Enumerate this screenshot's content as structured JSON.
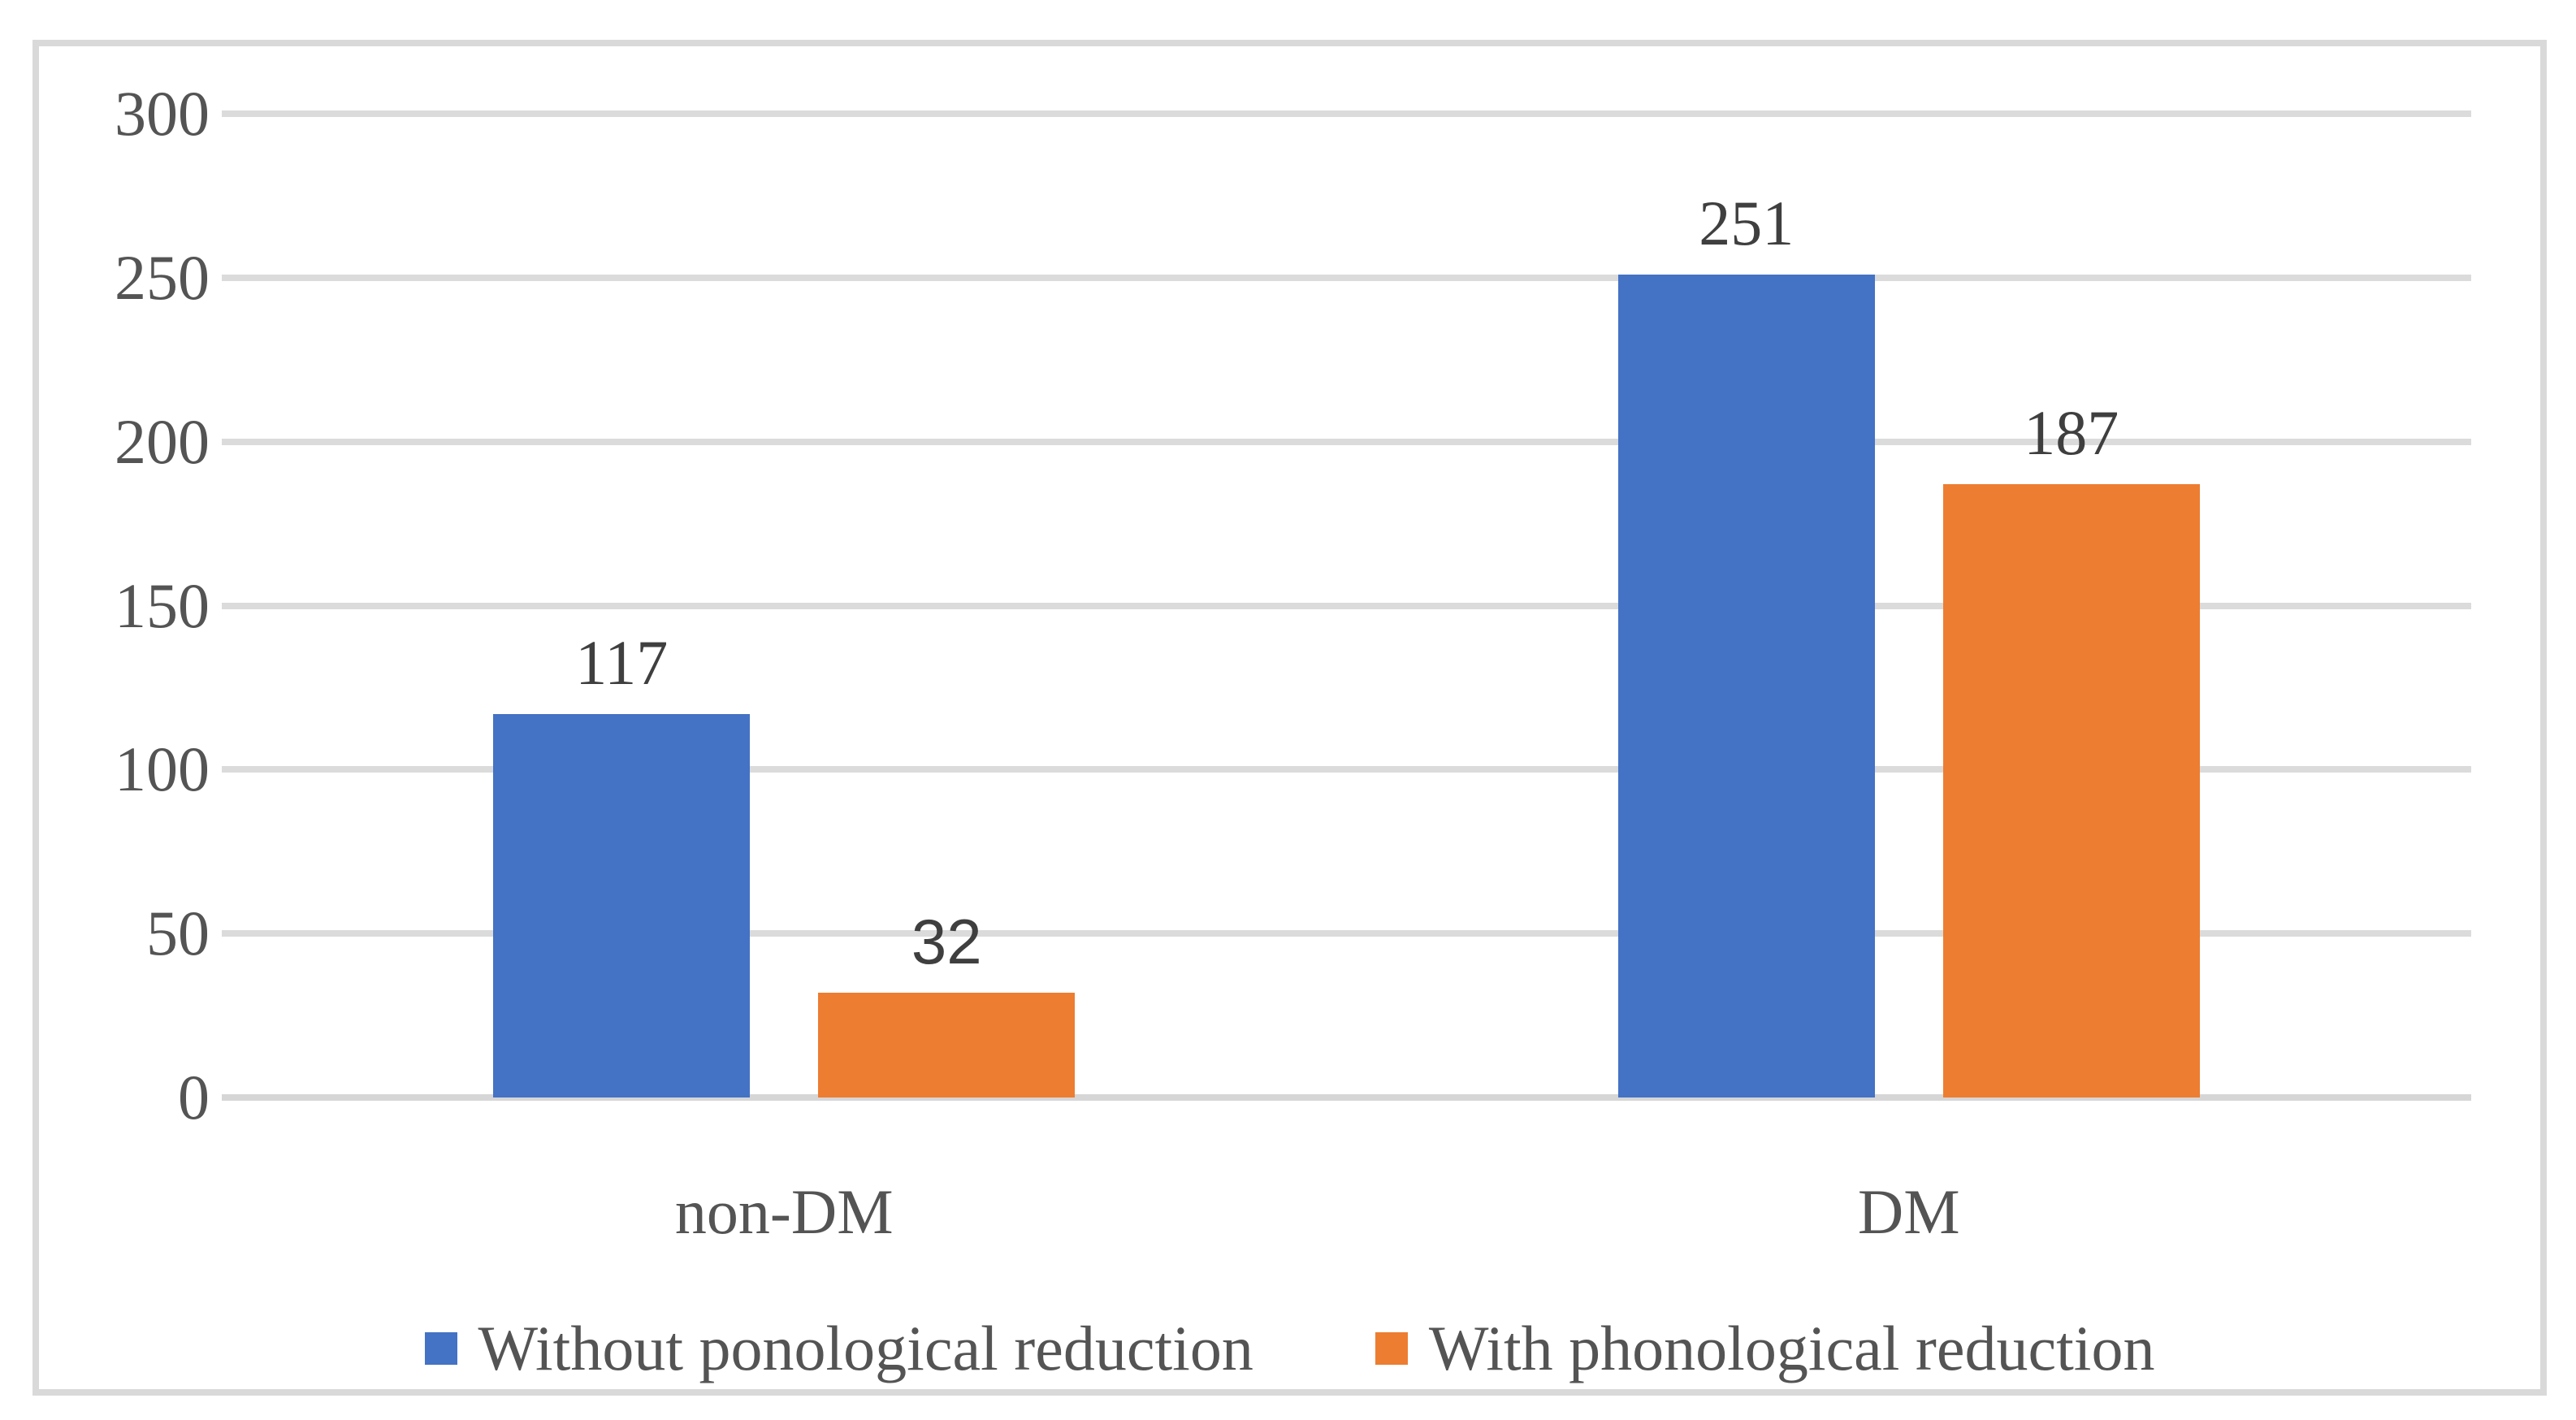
{
  "chart_data": {
    "type": "bar",
    "title": "",
    "categories": [
      "non-DM",
      "DM"
    ],
    "series": [
      {
        "name": "Without ponological reduction",
        "color": "#4472C4",
        "values": [
          117,
          251
        ],
        "value_labels": [
          "117",
          "251"
        ],
        "value_label_fonts": [
          "serif",
          "serif"
        ]
      },
      {
        "name": "With phonological reduction",
        "color": "#ED7D31",
        "values": [
          32,
          187
        ],
        "value_labels": [
          "32",
          "187"
        ],
        "value_label_fonts": [
          "sans",
          "serif"
        ]
      }
    ],
    "xlabel": "",
    "ylabel": "",
    "y_axis": {
      "min": 0,
      "max": 300,
      "step": 50,
      "tick_labels": [
        "0",
        "50",
        "100",
        "150",
        "200",
        "250",
        "300"
      ]
    },
    "grid": true,
    "data_labels": true,
    "legend_position": "bottom"
  },
  "style": {
    "series_colors": [
      "#4472C4",
      "#ED7D31"
    ],
    "gridline_color": "#DBDBDB",
    "axis_line_color": "#D6D6D6",
    "frame_border_color": "#D9D9D9",
    "axis_text_color": "#545454",
    "value_label_color": "#3F3F3F",
    "background_color": "#FFFFFF"
  }
}
